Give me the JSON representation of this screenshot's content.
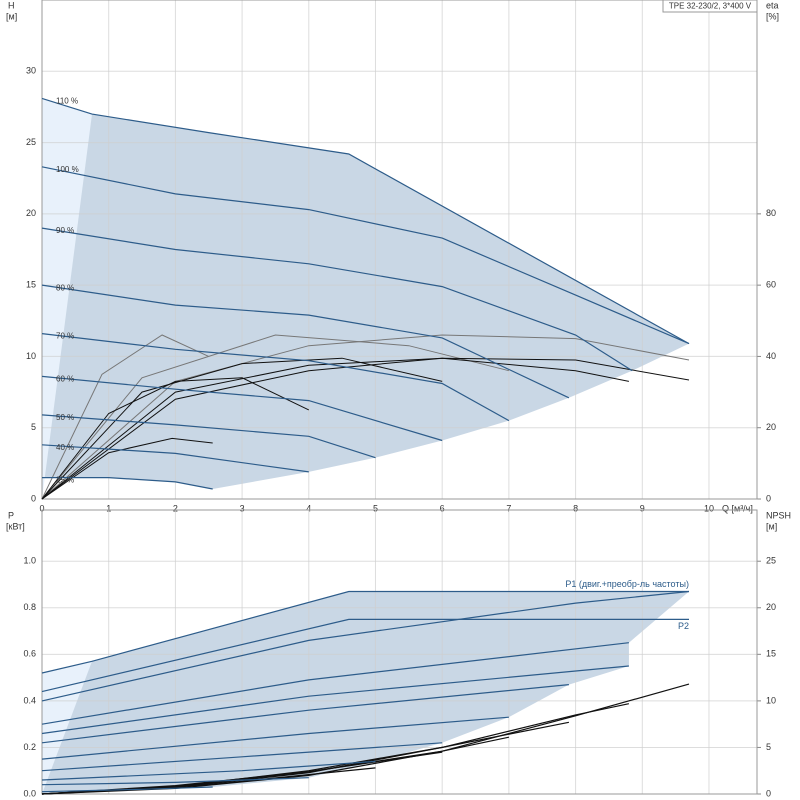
{
  "chart_data": [
    {
      "type": "line",
      "title": "TPE 32-230/2, 3*400 V",
      "y_label": "H",
      "y_unit": "[м]",
      "y2_label": "eta",
      "y2_unit": "[%]",
      "x_label": "Q [м³/ч]",
      "xlim": [
        0,
        10.72
      ],
      "xticks": [
        0,
        1,
        2,
        3,
        4,
        5,
        6,
        7,
        8,
        9,
        10
      ],
      "ylim": [
        0,
        35
      ],
      "yticks": [
        0,
        5,
        10,
        15,
        20,
        25,
        30
      ],
      "y2lim": [
        0,
        140
      ],
      "y2ticks": [
        0,
        20,
        40,
        60,
        80
      ],
      "grid": true,
      "shade_color": "#c9d7e5",
      "light_color": "#e8f1fb",
      "series": [
        {
          "name": "110 %",
          "color": "#2d5c8a",
          "x": [
            0,
            0.75,
            2.5,
            4.6,
            9.7
          ],
          "values": [
            28.1,
            27.0,
            25.7,
            24.2,
            10.9
          ]
        },
        {
          "name": "100 %",
          "color": "#2d5c8a",
          "x": [
            0,
            2,
            4,
            6,
            8,
            9.7
          ],
          "values": [
            23.3,
            21.4,
            20.3,
            18.3,
            14.3,
            10.9
          ]
        },
        {
          "name": "90 %",
          "color": "#2d5c8a",
          "x": [
            0,
            2,
            4,
            6,
            8,
            8.85
          ],
          "values": [
            19.0,
            17.5,
            16.5,
            14.9,
            11.5,
            9.0
          ]
        },
        {
          "name": "80 %",
          "color": "#2d5c8a",
          "x": [
            0,
            2,
            4,
            6,
            7.9
          ],
          "values": [
            15.0,
            13.6,
            12.9,
            11.3,
            7.1
          ]
        },
        {
          "name": "70 %",
          "color": "#2d5c8a",
          "x": [
            0,
            2,
            4,
            6,
            7.0
          ],
          "values": [
            11.6,
            10.5,
            9.7,
            8.1,
            5.5
          ]
        },
        {
          "name": "60 %",
          "color": "#2d5c8a",
          "x": [
            0,
            2,
            4,
            6.0
          ],
          "values": [
            8.6,
            7.7,
            6.9,
            4.1
          ]
        },
        {
          "name": "50 %",
          "color": "#2d5c8a",
          "x": [
            0,
            2,
            4,
            5.0
          ],
          "values": [
            5.9,
            5.2,
            4.4,
            2.9
          ]
        },
        {
          "name": "40 %",
          "color": "#2d5c8a",
          "x": [
            0,
            2,
            4.0
          ],
          "values": [
            3.8,
            3.2,
            1.9
          ]
        },
        {
          "name": "25 %",
          "color": "#2d5c8a",
          "x": [
            0,
            1,
            2,
            2.56
          ],
          "values": [
            1.5,
            1.5,
            1.2,
            0.7
          ]
        }
      ],
      "eta_curves": [
        {
          "axis": "y2",
          "color": "#777777",
          "x": [
            0,
            2,
            4,
            6,
            8,
            9.7
          ],
          "values": [
            0,
            33,
            43,
            46,
            45,
            39
          ]
        },
        {
          "axis": "y2",
          "color": "#777777",
          "x": [
            0,
            0.9,
            1.8,
            2.5
          ],
          "values": [
            0,
            35,
            46,
            40
          ]
        },
        {
          "axis": "y2",
          "color": "#777777",
          "x": [
            0,
            1.5,
            3.5,
            5.5,
            7
          ],
          "values": [
            0,
            34,
            46,
            43,
            36
          ]
        },
        {
          "axis": "y2",
          "color": "#111111",
          "x": [
            0,
            2,
            4,
            6,
            8,
            9.7
          ],
          "values": [
            0,
            28,
            36,
            39.5,
            39,
            33.4
          ]
        },
        {
          "axis": "y2",
          "color": "#111111",
          "x": [
            0,
            2,
            4,
            6,
            8,
            8.8
          ],
          "values": [
            0,
            30,
            37.5,
            39.5,
            36,
            33
          ]
        },
        {
          "axis": "y2",
          "color": "#111111",
          "x": [
            0,
            1.5,
            3,
            4.5,
            6
          ],
          "values": [
            0,
            30,
            38,
            39.5,
            33
          ]
        },
        {
          "axis": "y2",
          "color": "#111111",
          "x": [
            0,
            1,
            2,
            3,
            4
          ],
          "values": [
            0,
            24,
            33,
            34,
            25
          ]
        },
        {
          "axis": "y2",
          "color": "#111111",
          "x": [
            0,
            1,
            1.95,
            2.56
          ],
          "values": [
            0,
            13,
            17,
            15.7
          ]
        }
      ]
    },
    {
      "type": "line",
      "y_label": "P",
      "y_unit": "[кВт]",
      "y2_label": "NPSH",
      "y2_unit": "[м]",
      "xlim": [
        0,
        10.72
      ],
      "xticks": [
        0,
        1,
        2,
        3,
        4,
        5,
        6,
        7,
        8,
        9,
        10
      ],
      "ylim": [
        0,
        1.22
      ],
      "yticks": [
        {
          "value": 0,
          "label": "0.0"
        },
        0.2,
        0.4,
        0.6,
        0.8,
        {
          "value": 1,
          "label": "1.0"
        }
      ],
      "y2lim": [
        0,
        30.5
      ],
      "y2ticks": [
        0,
        5,
        10,
        15,
        20,
        25
      ],
      "grid": true,
      "shade_color": "#c9d7e5",
      "light_color": "#e8f1fb",
      "series": [
        {
          "name": "P1 (двиг.+преобр-ль частоты)",
          "color": "#2d5c8a",
          "x": [
            0,
            0.75,
            4.6,
            9.7
          ],
          "values": [
            0.52,
            0.57,
            0.87,
            0.87
          ]
        },
        {
          "name": "P2",
          "color": "#2d5c8a",
          "x": [
            0,
            4.6,
            9.7
          ],
          "values": [
            0.44,
            0.75,
            0.75
          ]
        }
      ],
      "curves": [
        {
          "color": "#2d5c8a",
          "x": [
            0,
            4,
            8,
            9.7
          ],
          "values": [
            0.4,
            0.66,
            0.82,
            0.87
          ]
        },
        {
          "color": "#2d5c8a",
          "x": [
            0,
            4,
            8.8
          ],
          "values": [
            0.3,
            0.49,
            0.65
          ]
        },
        {
          "color": "#2d5c8a",
          "x": [
            0,
            4,
            8.8
          ],
          "values": [
            0.26,
            0.42,
            0.55
          ]
        },
        {
          "color": "#2d5c8a",
          "x": [
            0,
            4,
            7.9
          ],
          "values": [
            0.22,
            0.36,
            0.47
          ]
        },
        {
          "color": "#2d5c8a",
          "x": [
            0,
            4,
            7.0
          ],
          "values": [
            0.15,
            0.26,
            0.33
          ]
        },
        {
          "color": "#2d5c8a",
          "x": [
            0,
            3,
            6.0
          ],
          "values": [
            0.1,
            0.16,
            0.22
          ]
        },
        {
          "color": "#2d5c8a",
          "x": [
            0,
            3,
            5.0
          ],
          "values": [
            0.06,
            0.1,
            0.14
          ]
        },
        {
          "color": "#2d5c8a",
          "x": [
            0,
            2,
            4.0
          ],
          "values": [
            0.04,
            0.05,
            0.07
          ]
        },
        {
          "color": "#2d5c8a",
          "x": [
            0,
            1.5,
            2.56
          ],
          "values": [
            0.01,
            0.02,
            0.03
          ]
        }
      ],
      "npsh_curves": [
        {
          "axis": "y2",
          "color": "#111111",
          "x": [
            0,
            2,
            4,
            6,
            8,
            9.7
          ],
          "values": [
            0,
            0.6,
            2,
            4.6,
            8.4,
            11.8
          ]
        },
        {
          "axis": "y2",
          "color": "#111111",
          "x": [
            0,
            2,
            4,
            6,
            8,
            8.8
          ],
          "values": [
            0,
            0.7,
            2.3,
            5,
            8.5,
            9.7
          ]
        },
        {
          "axis": "y2",
          "color": "#111111",
          "x": [
            0,
            2,
            4,
            6,
            7.9
          ],
          "values": [
            0,
            0.8,
            2.5,
            5,
            7.7
          ]
        },
        {
          "axis": "y2",
          "color": "#111111",
          "x": [
            0,
            2,
            4,
            6,
            7
          ],
          "values": [
            0,
            0.8,
            2.4,
            4.6,
            6.1
          ]
        },
        {
          "axis": "y2",
          "color": "#111111",
          "x": [
            0,
            2,
            4,
            6
          ],
          "values": [
            0,
            0.9,
            2.4,
            4.5
          ]
        },
        {
          "axis": "y2",
          "color": "#111111",
          "x": [
            0,
            2.5,
            5
          ],
          "values": [
            0,
            1,
            2.8
          ]
        }
      ]
    }
  ]
}
